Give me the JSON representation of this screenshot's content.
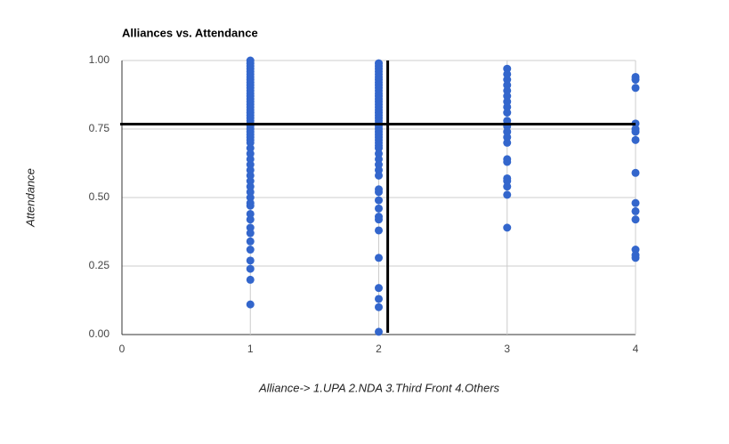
{
  "chart_data": {
    "type": "scatter",
    "title": "Alliances vs. Attendance",
    "x_label": "Alliance-> 1.UPA 2.NDA 3.Third Front 4.Others",
    "y_label": "Attendance",
    "xlim": [
      0,
      4
    ],
    "ylim": [
      0,
      1
    ],
    "xticks": [
      0,
      1,
      2,
      3,
      4
    ],
    "yticks": [
      {
        "value": 0,
        "label": "0.00"
      },
      {
        "value": 0.25,
        "label": "0.25"
      },
      {
        "value": 0.5,
        "label": "0.50"
      },
      {
        "value": 0.75,
        "label": "0.75"
      },
      {
        "value": 1,
        "label": "1.00"
      }
    ],
    "grid": true,
    "color": "#3366cc",
    "series": [
      {
        "x": 1,
        "values": [
          1.0,
          0.99,
          0.98,
          0.97,
          0.96,
          0.95,
          0.94,
          0.93,
          0.92,
          0.91,
          0.9,
          0.89,
          0.88,
          0.87,
          0.86,
          0.85,
          0.84,
          0.83,
          0.82,
          0.81,
          0.8,
          0.79,
          0.78,
          0.77,
          0.76,
          0.75,
          0.74,
          0.73,
          0.72,
          0.71,
          0.7,
          0.68,
          0.66,
          0.64,
          0.62,
          0.6,
          0.58,
          0.56,
          0.54,
          0.52,
          0.5,
          0.48,
          0.47,
          0.44,
          0.42,
          0.39,
          0.37,
          0.34,
          0.31,
          0.27,
          0.24,
          0.2,
          0.11
        ]
      },
      {
        "x": 2,
        "values": [
          0.99,
          0.98,
          0.97,
          0.96,
          0.95,
          0.94,
          0.93,
          0.92,
          0.91,
          0.9,
          0.89,
          0.88,
          0.87,
          0.86,
          0.85,
          0.84,
          0.83,
          0.82,
          0.81,
          0.8,
          0.79,
          0.78,
          0.77,
          0.76,
          0.75,
          0.74,
          0.73,
          0.72,
          0.71,
          0.7,
          0.69,
          0.68,
          0.66,
          0.64,
          0.62,
          0.6,
          0.58,
          0.53,
          0.52,
          0.49,
          0.46,
          0.43,
          0.42,
          0.38,
          0.28,
          0.17,
          0.13,
          0.1,
          0.01
        ]
      },
      {
        "x": 3,
        "values": [
          0.97,
          0.95,
          0.93,
          0.91,
          0.89,
          0.87,
          0.85,
          0.83,
          0.81,
          0.78,
          0.76,
          0.74,
          0.72,
          0.7,
          0.64,
          0.63,
          0.57,
          0.56,
          0.54,
          0.51,
          0.39
        ]
      },
      {
        "x": 4,
        "values": [
          0.94,
          0.93,
          0.9,
          0.77,
          0.75,
          0.74,
          0.71,
          0.59,
          0.48,
          0.45,
          0.42,
          0.31,
          0.29,
          0.28
        ]
      }
    ],
    "reference_lines": [
      {
        "axis": "y",
        "value": 0.768
      },
      {
        "axis": "x",
        "value": 2.07
      }
    ]
  }
}
